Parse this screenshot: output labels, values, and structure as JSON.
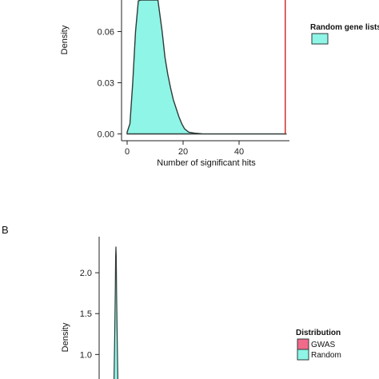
{
  "figure": {
    "panel_b_letter": "B"
  },
  "colors": {
    "random": "#8ff5e6",
    "gwas": "#f06a8a",
    "outline": "#2f3a38",
    "observed_line": "#cc2222",
    "axis": "#222222"
  },
  "chart_data": [
    {
      "panel": "A",
      "type": "area",
      "title": "",
      "xlabel": "Number of significant hits",
      "ylabel": "Density",
      "xlim": [
        -2,
        58
      ],
      "ylim": [
        -0.004,
        0.0785
      ],
      "xticks": [
        0,
        20,
        40
      ],
      "yticks": [
        0.0,
        0.03,
        0.06
      ],
      "ytick_labels": [
        "0.00",
        "0.03",
        "0.06"
      ],
      "grid": false,
      "legend": {
        "title": "",
        "placement": "right",
        "entries": [
          {
            "label": "Random gene lists",
            "color": "#8ff5e6"
          }
        ]
      },
      "series": [
        {
          "name": "Random gene lists",
          "x": [
            0,
            1,
            2,
            3,
            4,
            5,
            5.6,
            7,
            9,
            11,
            12.5,
            13.5,
            14.5,
            15.5,
            16.5,
            17.5,
            18.5,
            19.5,
            20.5,
            22,
            24,
            27,
            30,
            57
          ],
          "y": [
            0.001,
            0.006,
            0.03,
            0.06,
            0.078,
            0.0785,
            0.0785,
            0.0785,
            0.0785,
            0.0785,
            0.06,
            0.045,
            0.035,
            0.027,
            0.02,
            0.015,
            0.01,
            0.006,
            0.003,
            0.001,
            0.0005,
            0,
            0,
            0
          ]
        }
      ],
      "observed_value": 56.5
    },
    {
      "panel": "B",
      "type": "area",
      "title": "",
      "xlabel": "",
      "ylabel": "Density",
      "xlim": [
        -0.1,
        0.1
      ],
      "ylim": [
        0.7,
        2.5
      ],
      "yticks": [
        1.0,
        1.5,
        2.0
      ],
      "ytick_labels": [
        "1.0",
        "1.5",
        "2.0"
      ],
      "grid": false,
      "legend": {
        "title": "Distribution",
        "placement": "right",
        "entries": [
          {
            "label": "GWAS",
            "color": "#f06a8a"
          },
          {
            "label": "Random",
            "color": "#8ff5e6"
          }
        ]
      },
      "series": [
        {
          "name": "Random",
          "x": [
            -0.006,
            -0.004,
            -0.002,
            -0.001,
            0,
            0.001,
            0.002,
            0.004,
            0.006
          ],
          "y": [
            0.7,
            1.2,
            1.8,
            2.2,
            2.32,
            2.2,
            1.75,
            1.2,
            0.7
          ]
        }
      ]
    }
  ]
}
